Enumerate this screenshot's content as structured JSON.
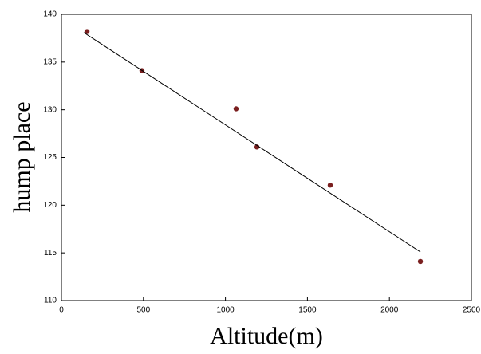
{
  "chart_data": {
    "type": "scatter",
    "xlabel": "Altitude(m)",
    "ylabel": "hump place",
    "series": [
      {
        "type": "scatter",
        "color": "#7a1f1f",
        "x": [
          156,
          491,
          1065,
          1192,
          1639,
          2189
        ],
        "values": [
          138.2,
          134.1,
          130.1,
          126.1,
          122.1,
          114.1
        ]
      },
      {
        "type": "line",
        "color": "#000000",
        "x": [
          136,
          2189
        ],
        "values": [
          138.1,
          115.1
        ]
      }
    ],
    "xlim": [
      0,
      2500
    ],
    "xticks": [
      0,
      500,
      1000,
      1500,
      2000,
      2500
    ],
    "ylim": [
      110,
      140
    ],
    "yticks": [
      110,
      115,
      120,
      125,
      130,
      135,
      140
    ]
  }
}
